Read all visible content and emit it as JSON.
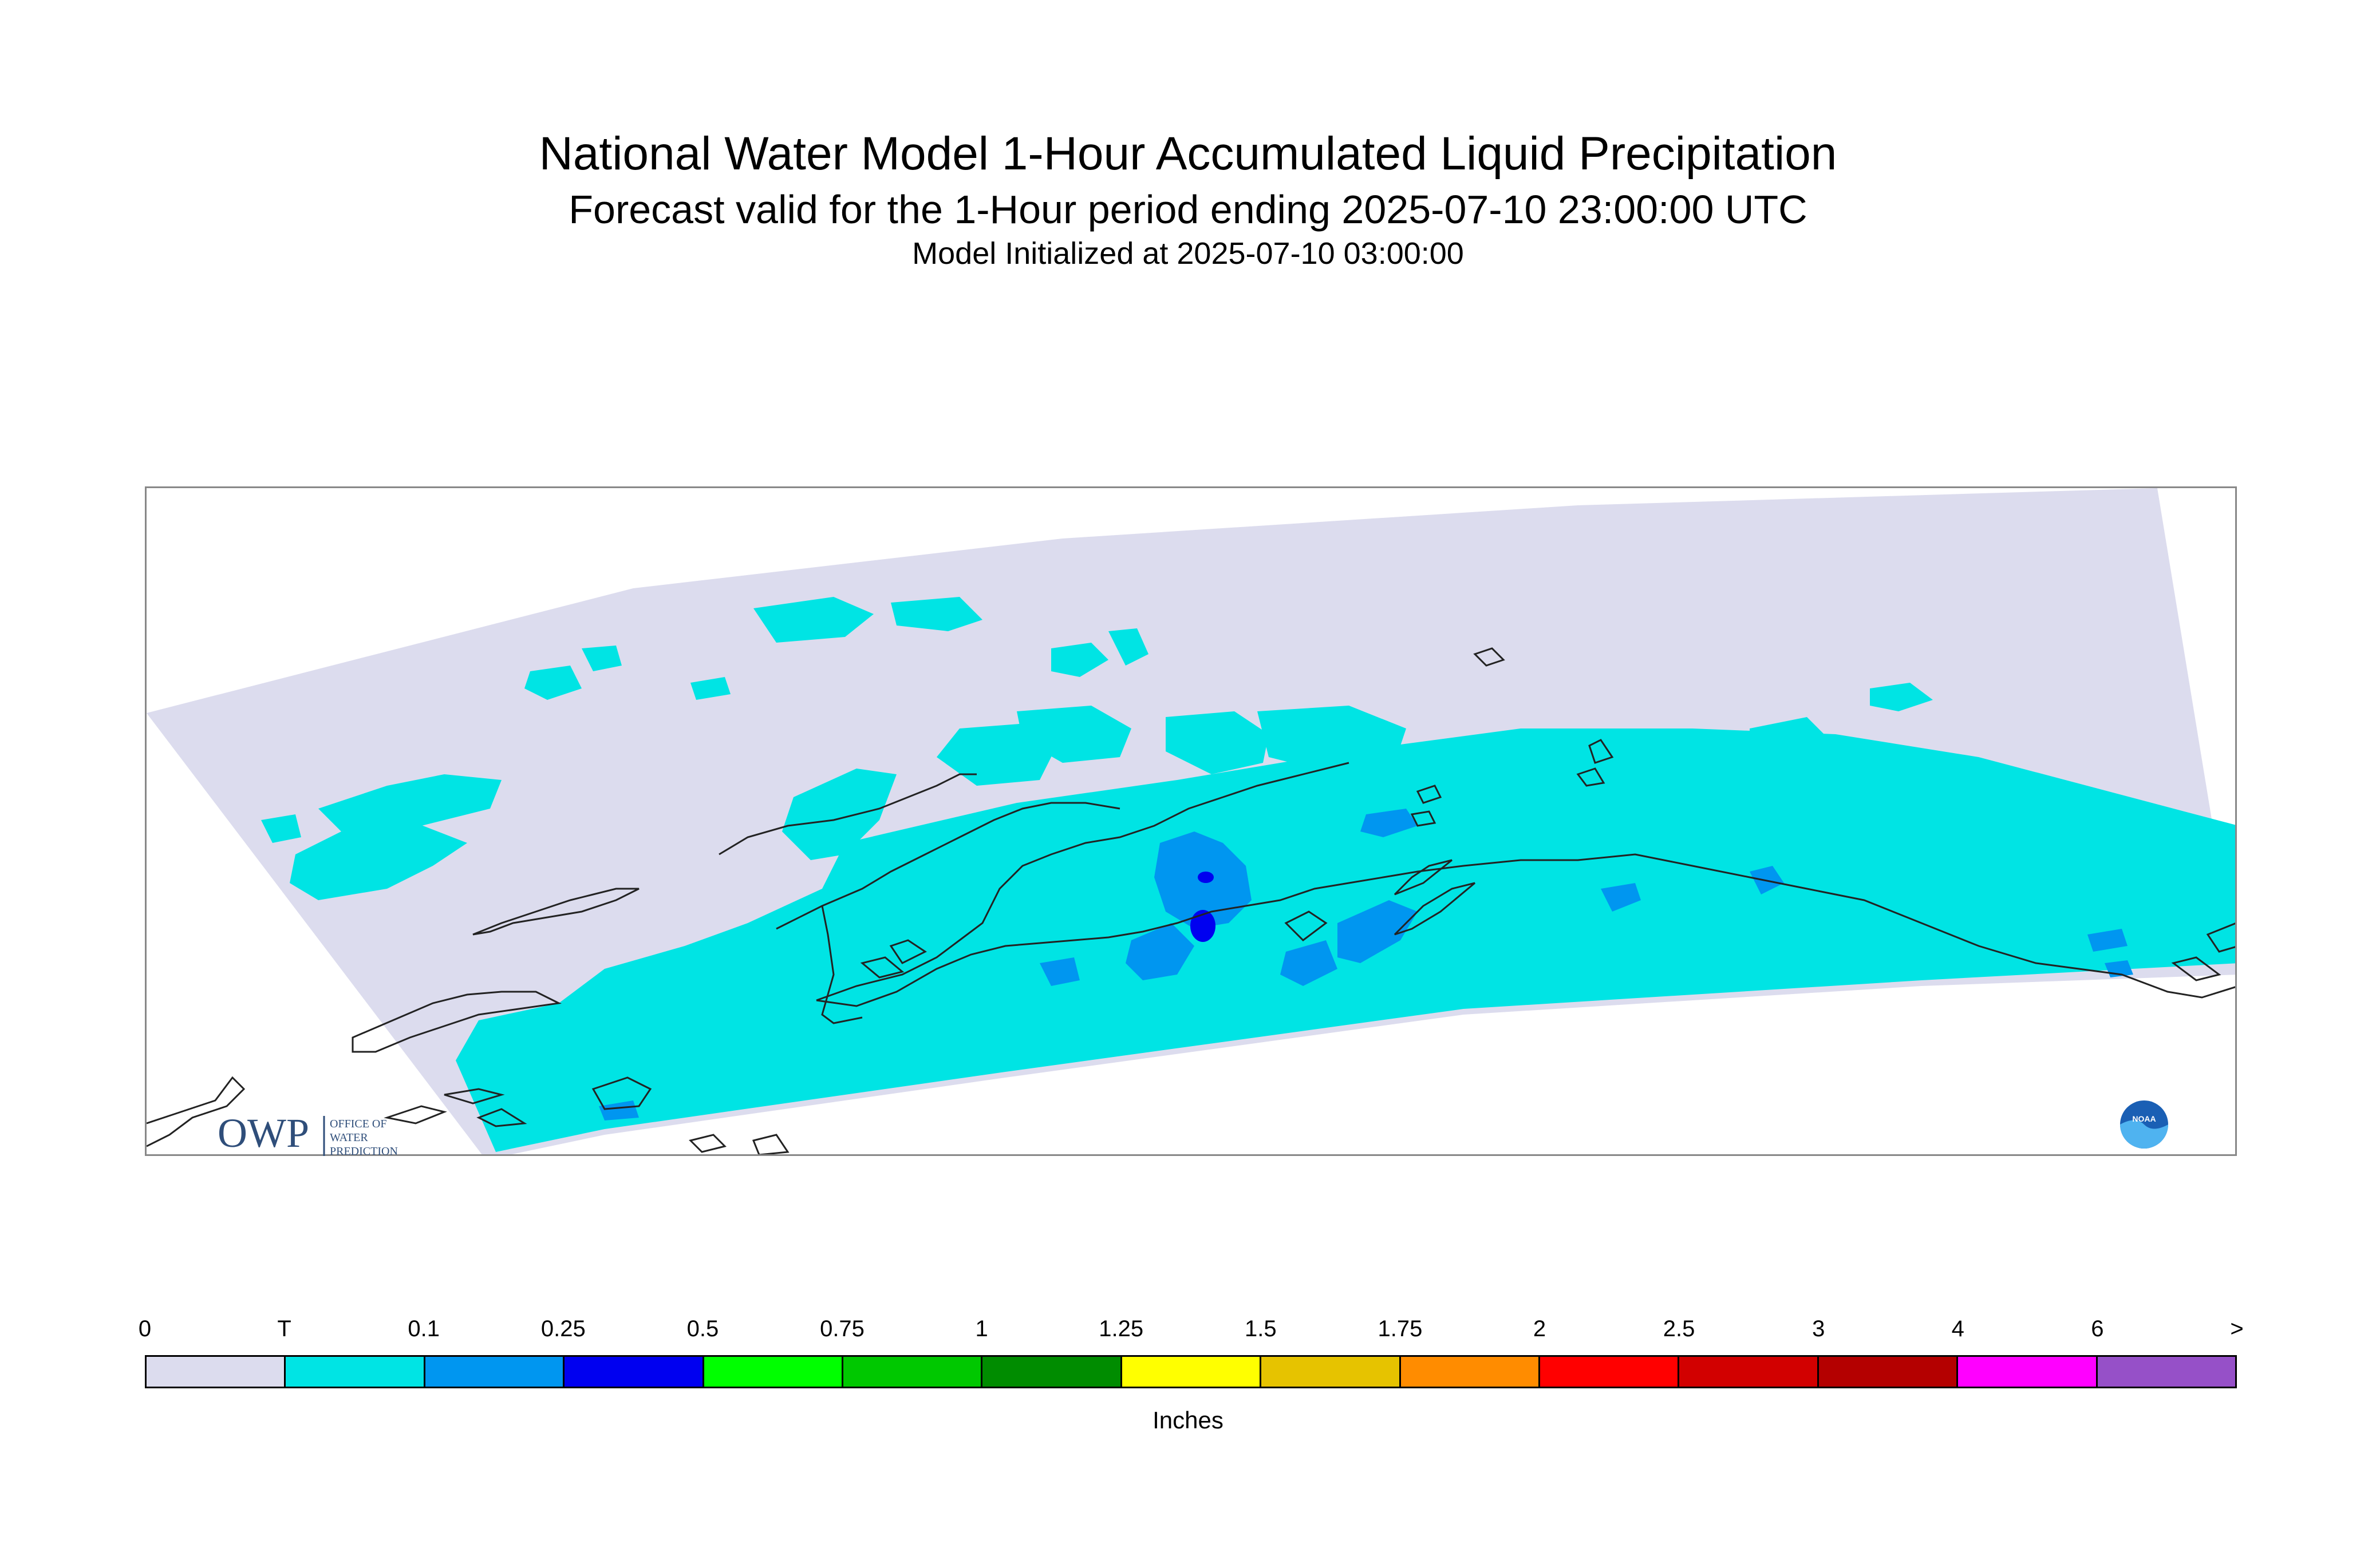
{
  "header": {
    "title": "National Water Model 1-Hour Accumulated Liquid Precipitation",
    "subtitle": "Forecast valid for the 1-Hour period ending 2025-07-10 23:00:00 UTC",
    "init_line": "Model Initialized at 2025-07-10 03:00:00"
  },
  "logos": {
    "owp_text": "OWP",
    "owp_lines": [
      "OFFICE OF",
      "WATER",
      "PREDICTION"
    ],
    "noaa_text": "NOAA"
  },
  "legend": {
    "units": "Inches",
    "ticks": [
      "0",
      "T",
      "0.1",
      "0.25",
      "0.5",
      "0.75",
      "1",
      "1.25",
      "1.5",
      "1.75",
      "2",
      "2.5",
      "3",
      "4",
      "6",
      ">"
    ],
    "colors": [
      "#dcdcee",
      "#00e4e4",
      "#0096f0",
      "#0000f0",
      "#00ff00",
      "#00c800",
      "#008c00",
      "#ffff00",
      "#e6c300",
      "#ff8c00",
      "#ff0000",
      "#d20000",
      "#b40000",
      "#ff00ff",
      "#9650c8"
    ]
  },
  "map_colors": {
    "domain": "#dcdcee",
    "trace": "#00e4e4",
    "light": "#0096f0",
    "heavy": "#0000f0",
    "coast": "#222222"
  }
}
